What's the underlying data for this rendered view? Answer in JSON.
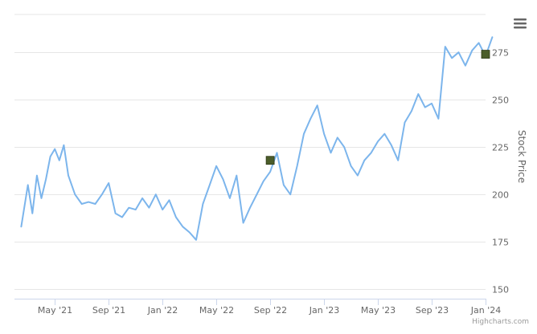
{
  "chart_data": {
    "type": "line",
    "title": "",
    "xlabel": "",
    "ylabel": "Stock Price",
    "ylim": [
      145,
      295
    ],
    "y_ticks": [
      150,
      175,
      200,
      225,
      250,
      275
    ],
    "x_ticks": [
      "May '21",
      "Sep '21",
      "Jan '22",
      "May '22",
      "Sep '22",
      "Jan '23",
      "May '23",
      "Sep '23",
      "Jan '24"
    ],
    "x_range": [
      "Feb '21",
      "Jan '24"
    ],
    "grid": true,
    "legend": "none",
    "series": [
      {
        "color": "#7cb5ec",
        "points": [
          [
            "Feb '21",
            183
          ],
          [
            "Mar '21",
            205
          ],
          [
            "Mar '21",
            190
          ],
          [
            "Mar '21",
            210
          ],
          [
            "Apr '21",
            198
          ],
          [
            "Apr '21",
            208
          ],
          [
            "Apr '21",
            220
          ],
          [
            "May '21",
            224
          ],
          [
            "May '21",
            218
          ],
          [
            "May '21",
            226
          ],
          [
            "Jun '21",
            210
          ],
          [
            "Jun '21",
            200
          ],
          [
            "Jul '21",
            195
          ],
          [
            "Jul '21",
            196
          ],
          [
            "Aug '21",
            195
          ],
          [
            "Aug '21",
            200
          ],
          [
            "Sep '21",
            206
          ],
          [
            "Sep '21",
            190
          ],
          [
            "Oct '21",
            188
          ],
          [
            "Oct '21",
            193
          ],
          [
            "Nov '21",
            192
          ],
          [
            "Nov '21",
            198
          ],
          [
            "Dec '21",
            193
          ],
          [
            "Dec '21",
            200
          ],
          [
            "Jan '22",
            192
          ],
          [
            "Jan '22",
            197
          ],
          [
            "Feb '22",
            188
          ],
          [
            "Feb '22",
            183
          ],
          [
            "Mar '22",
            180
          ],
          [
            "Mar '22",
            176
          ],
          [
            "Apr '22",
            195
          ],
          [
            "Apr '22",
            205
          ],
          [
            "May '22",
            215
          ],
          [
            "May '22",
            208
          ],
          [
            "Jun '22",
            198
          ],
          [
            "Jun '22",
            210
          ],
          [
            "Jul '22",
            185
          ],
          [
            "Jul '22",
            193
          ],
          [
            "Aug '22",
            200
          ],
          [
            "Aug '22",
            207
          ],
          [
            "Sep '22",
            212
          ],
          [
            "Sep '22",
            222
          ],
          [
            "Oct '22",
            205
          ],
          [
            "Oct '22",
            200
          ],
          [
            "Nov '22",
            215
          ],
          [
            "Nov '22",
            232
          ],
          [
            "Dec '22",
            240
          ],
          [
            "Dec '22",
            247
          ],
          [
            "Jan '23",
            232
          ],
          [
            "Jan '23",
            222
          ],
          [
            "Feb '23",
            230
          ],
          [
            "Feb '23",
            225
          ],
          [
            "Mar '23",
            215
          ],
          [
            "Mar '23",
            210
          ],
          [
            "Apr '23",
            218
          ],
          [
            "Apr '23",
            222
          ],
          [
            "May '23",
            228
          ],
          [
            "May '23",
            232
          ],
          [
            "Jun '23",
            226
          ],
          [
            "Jun '23",
            218
          ],
          [
            "Jul '23",
            238
          ],
          [
            "Jul '23",
            244
          ],
          [
            "Aug '23",
            253
          ],
          [
            "Aug '23",
            246
          ],
          [
            "Sep '23",
            248
          ],
          [
            "Sep '23",
            240
          ],
          [
            "Oct '23",
            278
          ],
          [
            "Oct '23",
            272
          ],
          [
            "Nov '23",
            275
          ],
          [
            "Nov '23",
            268
          ],
          [
            "Dec '23",
            276
          ],
          [
            "Dec '23",
            280
          ],
          [
            "Jan '24",
            273
          ],
          [
            "Jan '24",
            283
          ]
        ]
      }
    ],
    "markers": [
      {
        "x": "Sep '22",
        "y": 218,
        "color": "#4b5d2a"
      },
      {
        "x": "Jan '24",
        "y": 274,
        "color": "#4b5d2a"
      }
    ],
    "credits": "Highcharts.com"
  },
  "menu_icon": "hamburger-icon"
}
